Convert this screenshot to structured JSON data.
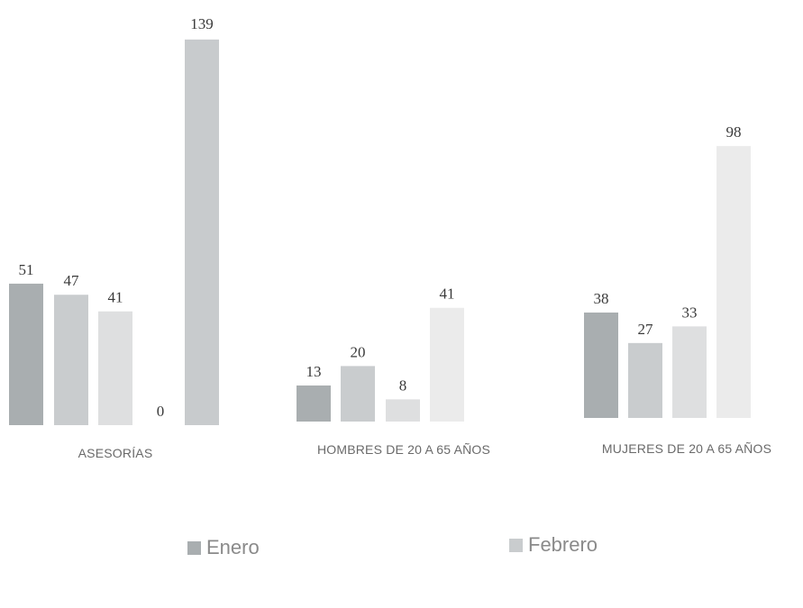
{
  "chart_data": {
    "type": "bar",
    "categories": [
      "ASESORÍAS",
      "HOMBRES DE  20 A 65 AÑOS",
      "MUJERES DE 20 A 65 AÑOS"
    ],
    "series": [
      {
        "name": "Enero",
        "values": [
          51,
          13,
          38
        ],
        "color": "#a9aeb0"
      },
      {
        "name": "Febrero",
        "values": [
          47,
          20,
          27
        ],
        "color": "#c9ccce"
      },
      {
        "values": [
          41,
          8,
          33
        ],
        "color": "#dedfe0"
      },
      {
        "values": [
          0,
          41,
          98
        ],
        "color": "#ebebeb"
      }
    ],
    "asesorias_extra_value": 139,
    "ylim": [
      0,
      150
    ],
    "legend": [
      "Enero",
      "Febrero"
    ],
    "legend_position": "bottom",
    "grid": false
  }
}
